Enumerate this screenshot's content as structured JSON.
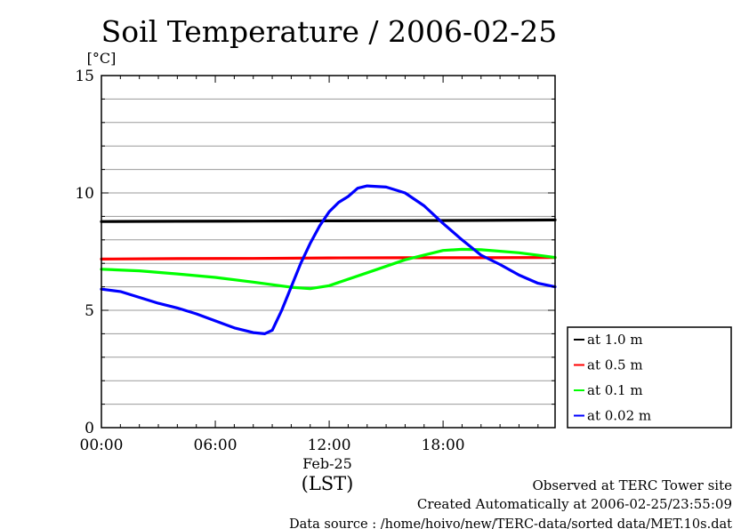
{
  "chart_data": {
    "type": "line",
    "title": "Soil Temperature / 2006-02-25",
    "ylabel": "[°C]",
    "xlabel": "(LST)",
    "date_label": "Feb-25",
    "xlim": [
      0,
      23.9
    ],
    "ylim": [
      0,
      15
    ],
    "yticks": [
      0,
      5,
      10,
      15
    ],
    "xticks": [
      {
        "hour": 0,
        "label": "00:00"
      },
      {
        "hour": 6,
        "label": "06:00"
      },
      {
        "hour": 12,
        "label": "12:00"
      },
      {
        "hour": 18,
        "label": "18:00"
      }
    ],
    "grid": true,
    "legend_position": "right",
    "series": [
      {
        "name": "at 1.0 m",
        "color": "#000000",
        "x": [
          0,
          4,
          8,
          12,
          16,
          20,
          23.9
        ],
        "y": [
          8.78,
          8.79,
          8.8,
          8.81,
          8.82,
          8.83,
          8.85
        ]
      },
      {
        "name": "at 0.5 m",
        "color": "#ff0000",
        "x": [
          0,
          4,
          8,
          12,
          16,
          20,
          23.9
        ],
        "y": [
          7.18,
          7.2,
          7.21,
          7.23,
          7.24,
          7.24,
          7.25
        ]
      },
      {
        "name": "at 0.1 m",
        "color": "#00ff00",
        "x": [
          0,
          2,
          4,
          6,
          8,
          10,
          11,
          12,
          14,
          16,
          18,
          19,
          20,
          22,
          23.9
        ],
        "y": [
          6.75,
          6.68,
          6.55,
          6.4,
          6.2,
          5.98,
          5.92,
          6.05,
          6.6,
          7.15,
          7.55,
          7.6,
          7.58,
          7.45,
          7.25
        ]
      },
      {
        "name": "at 0.02 m",
        "color": "#0000ff",
        "x": [
          0,
          1,
          2,
          3,
          4,
          5,
          6,
          7,
          8,
          8.6,
          9,
          9.5,
          10,
          10.5,
          11,
          11.5,
          12,
          12.5,
          13,
          13.5,
          14,
          15,
          16,
          17,
          18,
          19,
          20,
          21,
          22,
          23,
          23.9
        ],
        "y": [
          5.9,
          5.8,
          5.55,
          5.3,
          5.1,
          4.85,
          4.55,
          4.25,
          4.05,
          4.0,
          4.15,
          5.0,
          6.0,
          7.0,
          7.85,
          8.6,
          9.2,
          9.6,
          9.85,
          10.2,
          10.3,
          10.25,
          10.0,
          9.45,
          8.7,
          8.0,
          7.35,
          6.95,
          6.5,
          6.15,
          6.0
        ]
      }
    ]
  },
  "footer": {
    "observed": "Observed at TERC Tower site",
    "created": "Created Automatically at 2006-02-25/23:55:09",
    "source": "Data source : /home/hoivo/new/TERC-data/sorted  data/MET.10s.dat"
  }
}
